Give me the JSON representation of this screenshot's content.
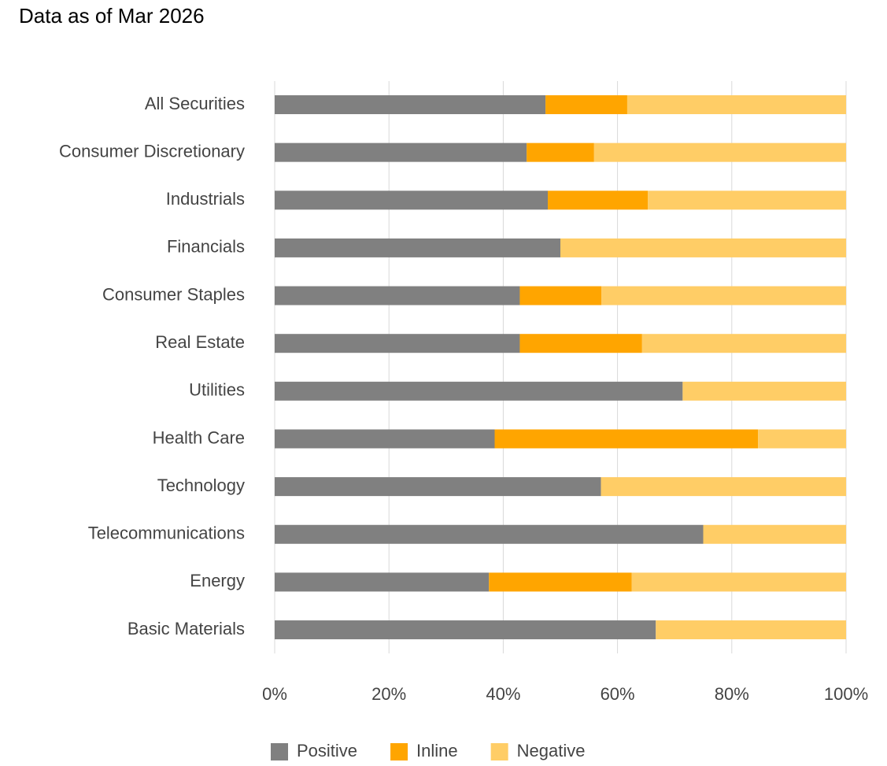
{
  "chart_data": {
    "type": "stacked-bar-horizontal",
    "title": "Data as of Mar 2026",
    "categories": [
      "All Securities",
      "Consumer Discretionary",
      "Industrials",
      "Financials",
      "Consumer Staples",
      "Real Estate",
      "Utilities",
      "Health Care",
      "Technology",
      "Telecommunications",
      "Energy",
      "Basic Materials"
    ],
    "series": [
      {
        "name": "Positive",
        "color": "#808080",
        "values": [
          47.4,
          44.1,
          47.8,
          50,
          42.9,
          42.9,
          71.4,
          38.5,
          57.1,
          75,
          37.5,
          66.7
        ]
      },
      {
        "name": "Inline",
        "color": "#ffa500",
        "values": [
          14.3,
          11.8,
          17.5,
          0,
          14.3,
          21.4,
          0,
          46.1,
          0,
          0,
          25,
          0
        ]
      },
      {
        "name": "Negative",
        "color": "#ffcd66",
        "values": [
          38.3,
          44.1,
          34.7,
          50,
          42.8,
          35.7,
          28.6,
          15.4,
          42.9,
          25,
          37.5,
          33.3
        ]
      }
    ],
    "xlim": [
      0,
      100
    ],
    "xticks": [
      {
        "value": 0,
        "label": "0%"
      },
      {
        "value": 20,
        "label": "20%"
      },
      {
        "value": 40,
        "label": "40%"
      },
      {
        "value": 60,
        "label": "60%"
      },
      {
        "value": 80,
        "label": "80%"
      },
      {
        "value": 100,
        "label": "100%"
      }
    ],
    "grid": true,
    "legend": "bottom"
  }
}
